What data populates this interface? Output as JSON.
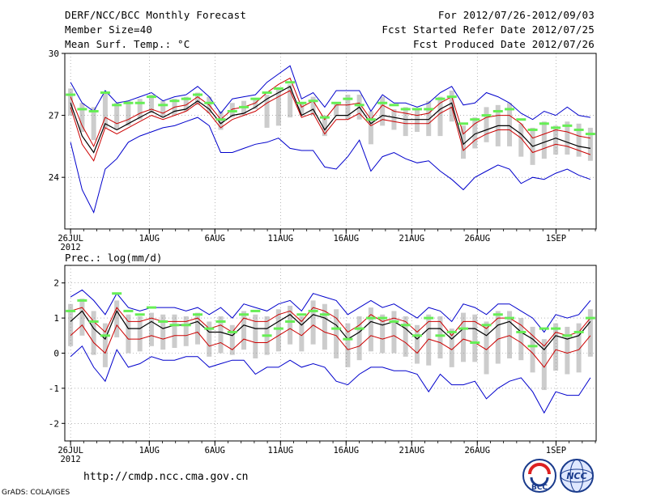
{
  "header": {
    "left": [
      "DERF/NCC/BCC Monthly Forecast",
      "Member Size=40",
      "Mean Surf. Temp.: °C"
    ],
    "right": [
      "For 2012/07/26-2012/09/03",
      "Fcst Started Refer Date 2012/07/25",
      "Fcst Produced Date 2012/07/26"
    ]
  },
  "panel2_title": "Prec.: log(mm/d)",
  "footer": {
    "url": "http://cmdp.ncc.cma.gov.cn",
    "credit": "GrADS: COLA/IGES",
    "logo1_text": "BCC",
    "logo2_text": "NCC"
  },
  "colors": {
    "max_min": "#0000cc",
    "spread": "#cc0000",
    "mean": "#000000",
    "median": "#66ee55",
    "box": "#cccccc",
    "grid": "#888888"
  },
  "chart_data": [
    {
      "type": "line",
      "title": "Mean Surf. Temp.: °C",
      "ylim": [
        21.5,
        30
      ],
      "yticks": [
        24,
        27,
        30
      ],
      "x_range": [
        0.0,
        40.5
      ],
      "tick_labels": [
        {
          "day": 0,
          "label": "26JUL",
          "sub": "2012"
        },
        {
          "day": 6,
          "label": "1AUG"
        },
        {
          "day": 11,
          "label": "6AUG"
        },
        {
          "day": 16,
          "label": "11AUG"
        },
        {
          "day": 21,
          "label": "16AUG"
        },
        {
          "day": 26,
          "label": "21AUG"
        },
        {
          "day": 31,
          "label": "26AUG"
        },
        {
          "day": 37,
          "label": "1SEP"
        }
      ],
      "series": [
        {
          "name": "max",
          "values": [
            28.6,
            27.6,
            27.2,
            28.2,
            27.6,
            27.7,
            27.9,
            28.1,
            27.7,
            27.9,
            28.0,
            28.4,
            27.9,
            27.1,
            27.8,
            27.9,
            28.0,
            28.6,
            29.0,
            29.4,
            27.8,
            28.1,
            27.4,
            28.2,
            28.2,
            28.2,
            27.2,
            28.0,
            27.6,
            27.6,
            27.4,
            27.6,
            28.1,
            28.4,
            27.5,
            27.6,
            28.1,
            27.9,
            27.6,
            27.1,
            26.8,
            27.2,
            27.0,
            27.4,
            27.0,
            26.9
          ]
        },
        {
          "name": "upper",
          "values": [
            27.9,
            26.5,
            25.5,
            26.9,
            26.6,
            26.8,
            27.1,
            27.3,
            27.1,
            27.4,
            27.5,
            27.9,
            27.5,
            26.8,
            27.3,
            27.4,
            27.6,
            28.1,
            28.5,
            28.8,
            27.4,
            27.7,
            26.8,
            27.5,
            27.5,
            27.6,
            26.8,
            27.5,
            27.2,
            27.1,
            27.0,
            27.1,
            27.6,
            27.9,
            26.1,
            26.6,
            26.9,
            27.0,
            27.0,
            26.6,
            25.9,
            26.1,
            26.3,
            26.2,
            26.0,
            25.9
          ]
        },
        {
          "name": "mean",
          "values": [
            27.6,
            26.0,
            25.2,
            26.6,
            26.3,
            26.6,
            26.9,
            27.2,
            26.9,
            27.2,
            27.3,
            27.7,
            27.3,
            26.6,
            27.0,
            27.1,
            27.4,
            27.8,
            28.1,
            28.4,
            27.0,
            27.3,
            26.3,
            27.0,
            27.0,
            27.4,
            26.6,
            27.0,
            26.9,
            26.8,
            26.8,
            26.8,
            27.3,
            27.6,
            25.6,
            26.1,
            26.3,
            26.5,
            26.5,
            26.1,
            25.5,
            25.7,
            25.9,
            25.7,
            25.5,
            25.4
          ]
        },
        {
          "name": "lower",
          "values": [
            27.4,
            25.6,
            24.8,
            26.4,
            26.1,
            26.4,
            26.7,
            27.0,
            26.8,
            27.0,
            27.2,
            27.6,
            27.1,
            26.4,
            26.8,
            27.0,
            27.2,
            27.6,
            27.9,
            28.2,
            26.9,
            27.1,
            26.1,
            26.8,
            26.8,
            27.1,
            26.5,
            26.8,
            26.7,
            26.6,
            26.6,
            26.6,
            27.1,
            27.4,
            25.3,
            25.8,
            26.1,
            26.3,
            26.3,
            25.9,
            25.2,
            25.4,
            25.6,
            25.5,
            25.3,
            25.1
          ]
        },
        {
          "name": "min",
          "values": [
            25.7,
            23.4,
            22.3,
            24.4,
            24.9,
            25.7,
            26.0,
            26.2,
            26.4,
            26.5,
            26.7,
            26.9,
            26.5,
            25.2,
            25.2,
            25.4,
            25.6,
            25.7,
            25.9,
            25.4,
            25.3,
            25.3,
            24.5,
            24.4,
            25.0,
            25.8,
            24.3,
            25.0,
            25.2,
            24.9,
            24.7,
            24.8,
            24.3,
            23.9,
            23.4,
            24.0,
            24.3,
            24.6,
            24.4,
            23.7,
            24.0,
            23.9,
            24.2,
            24.4,
            24.1,
            23.9
          ]
        }
      ],
      "median": [
        28.0,
        27.3,
        27.2,
        28.1,
        27.5,
        27.6,
        27.6,
        27.9,
        27.5,
        27.7,
        27.8,
        28.0,
        27.6,
        26.8,
        27.2,
        27.4,
        27.8,
        28.1,
        28.3,
        28.6,
        27.6,
        27.7,
        26.9,
        27.6,
        27.8,
        27.5,
        26.8,
        27.6,
        27.5,
        27.3,
        27.3,
        27.3,
        27.8,
        27.9,
        26.6,
        26.8,
        27.0,
        27.2,
        27.3,
        26.8,
        26.3,
        26.6,
        26.4,
        26.5,
        26.3,
        26.1
      ],
      "box": [
        [
          27.0,
          28.3
        ],
        [
          26.2,
          27.6
        ],
        [
          25.8,
          27.4
        ],
        [
          26.4,
          28.1
        ],
        [
          26.3,
          27.6
        ],
        [
          26.5,
          27.7
        ],
        [
          26.8,
          27.8
        ],
        [
          27.1,
          28.0
        ],
        [
          26.9,
          27.7
        ],
        [
          27.0,
          27.8
        ],
        [
          27.2,
          27.9
        ],
        [
          27.5,
          28.1
        ],
        [
          27.1,
          27.9
        ],
        [
          26.3,
          27.2
        ],
        [
          26.9,
          27.6
        ],
        [
          27.0,
          27.7
        ],
        [
          27.3,
          27.8
        ],
        [
          26.4,
          28.0
        ],
        [
          26.5,
          28.3
        ],
        [
          26.9,
          28.5
        ],
        [
          27.0,
          27.6
        ],
        [
          27.0,
          27.9
        ],
        [
          26.0,
          27.0
        ],
        [
          27.0,
          27.6
        ],
        [
          26.8,
          28.0
        ],
        [
          26.8,
          28.0
        ],
        [
          25.6,
          27.2
        ],
        [
          26.5,
          27.9
        ],
        [
          26.3,
          27.3
        ],
        [
          26.0,
          27.4
        ],
        [
          26.2,
          27.3
        ],
        [
          26.0,
          27.7
        ],
        [
          26.0,
          27.9
        ],
        [
          26.7,
          28.2
        ],
        [
          24.9,
          26.5
        ],
        [
          25.4,
          26.9
        ],
        [
          25.7,
          27.4
        ],
        [
          25.5,
          27.5
        ],
        [
          25.5,
          27.6
        ],
        [
          25.0,
          26.6
        ],
        [
          24.6,
          26.4
        ],
        [
          24.9,
          26.7
        ],
        [
          25.1,
          26.5
        ],
        [
          25.1,
          26.7
        ],
        [
          25.0,
          26.6
        ],
        [
          24.8,
          26.4
        ]
      ]
    },
    {
      "type": "line",
      "title": "Prec.: log(mm/d)",
      "ylim": [
        -2.5,
        2.5
      ],
      "yticks": [
        -2,
        -1,
        0,
        1,
        2
      ],
      "x_range": [
        0.0,
        40.5
      ],
      "tick_labels": [
        {
          "day": 0,
          "label": "26JUL",
          "sub": "2012"
        },
        {
          "day": 6,
          "label": "1AUG"
        },
        {
          "day": 11,
          "label": "6AUG"
        },
        {
          "day": 16,
          "label": "11AUG"
        },
        {
          "day": 21,
          "label": "16AUG"
        },
        {
          "day": 26,
          "label": "21AUG"
        },
        {
          "day": 31,
          "label": "26AUG"
        },
        {
          "day": 37,
          "label": "1SEP"
        }
      ],
      "series": [
        {
          "name": "max",
          "values": [
            1.6,
            1.8,
            1.5,
            1.1,
            1.7,
            1.3,
            1.2,
            1.3,
            1.3,
            1.3,
            1.2,
            1.3,
            1.1,
            1.3,
            1.0,
            1.4,
            1.3,
            1.2,
            1.4,
            1.5,
            1.2,
            1.7,
            1.6,
            1.5,
            1.1,
            1.3,
            1.5,
            1.3,
            1.4,
            1.2,
            1.0,
            1.3,
            1.2,
            0.9,
            1.4,
            1.3,
            1.1,
            1.4,
            1.4,
            1.2,
            1.0,
            0.6,
            1.1,
            1.0,
            1.1,
            1.5
          ]
        },
        {
          "name": "upper",
          "values": [
            1.2,
            1.3,
            0.9,
            0.6,
            1.3,
            0.9,
            0.9,
            1.0,
            0.9,
            0.9,
            0.9,
            1.0,
            0.7,
            0.8,
            0.6,
            1.0,
            0.9,
            0.9,
            1.1,
            1.2,
            0.9,
            1.3,
            1.2,
            1.0,
            0.6,
            0.8,
            1.1,
            0.9,
            1.0,
            0.9,
            0.6,
            0.9,
            0.9,
            0.5,
            0.9,
            0.9,
            0.7,
            1.0,
            1.0,
            0.8,
            0.5,
            0.2,
            0.6,
            0.5,
            0.6,
            1.0
          ]
        },
        {
          "name": "mean",
          "values": [
            0.9,
            1.2,
            0.7,
            0.4,
            1.2,
            0.7,
            0.7,
            0.9,
            0.7,
            0.8,
            0.8,
            0.9,
            0.6,
            0.6,
            0.5,
            0.8,
            0.7,
            0.7,
            0.9,
            1.1,
            0.8,
            1.1,
            1.0,
            0.8,
            0.4,
            0.6,
            0.9,
            0.8,
            0.9,
            0.7,
            0.4,
            0.7,
            0.7,
            0.4,
            0.7,
            0.7,
            0.5,
            0.8,
            0.9,
            0.6,
            0.4,
            0.1,
            0.5,
            0.4,
            0.5,
            0.9
          ]
        },
        {
          "name": "lower",
          "values": [
            0.5,
            0.8,
            0.3,
            0.0,
            0.8,
            0.4,
            0.4,
            0.5,
            0.4,
            0.5,
            0.5,
            0.6,
            0.2,
            0.3,
            0.1,
            0.4,
            0.3,
            0.3,
            0.5,
            0.7,
            0.5,
            0.8,
            0.6,
            0.5,
            0.1,
            0.2,
            0.5,
            0.4,
            0.5,
            0.3,
            0.0,
            0.4,
            0.3,
            0.1,
            0.4,
            0.3,
            0.1,
            0.4,
            0.5,
            0.3,
            0.0,
            -0.4,
            0.1,
            0.0,
            0.1,
            0.5
          ]
        },
        {
          "name": "min",
          "values": [
            -0.1,
            0.2,
            -0.4,
            -0.8,
            0.1,
            -0.4,
            -0.3,
            -0.1,
            -0.2,
            -0.2,
            -0.1,
            -0.1,
            -0.4,
            -0.3,
            -0.2,
            -0.2,
            -0.6,
            -0.4,
            -0.4,
            -0.2,
            -0.4,
            -0.3,
            -0.4,
            -0.8,
            -0.9,
            -0.6,
            -0.4,
            -0.4,
            -0.5,
            -0.5,
            -0.6,
            -1.1,
            -0.6,
            -0.9,
            -0.9,
            -0.8,
            -1.3,
            -1.0,
            -0.8,
            -0.7,
            -1.1,
            -1.7,
            -1.1,
            -1.2,
            -1.2,
            -0.7
          ]
        }
      ],
      "median": [
        1.2,
        1.5,
        0.9,
        0.5,
        1.7,
        1.2,
        1.1,
        1.3,
        0.9,
        0.8,
        0.8,
        1.1,
        0.7,
        0.9,
        0.6,
        1.1,
        1.2,
        0.5,
        0.7,
        0.9,
        1.1,
        1.2,
        1.1,
        0.7,
        0.4,
        0.7,
        1.0,
        1.0,
        0.9,
        0.8,
        0.5,
        1.0,
        0.5,
        0.6,
        0.7,
        0.3,
        0.8,
        1.1,
        1.0,
        0.6,
        0.2,
        0.7,
        0.7,
        0.5,
        0.6,
        1.0
      ]
    }
  ]
}
